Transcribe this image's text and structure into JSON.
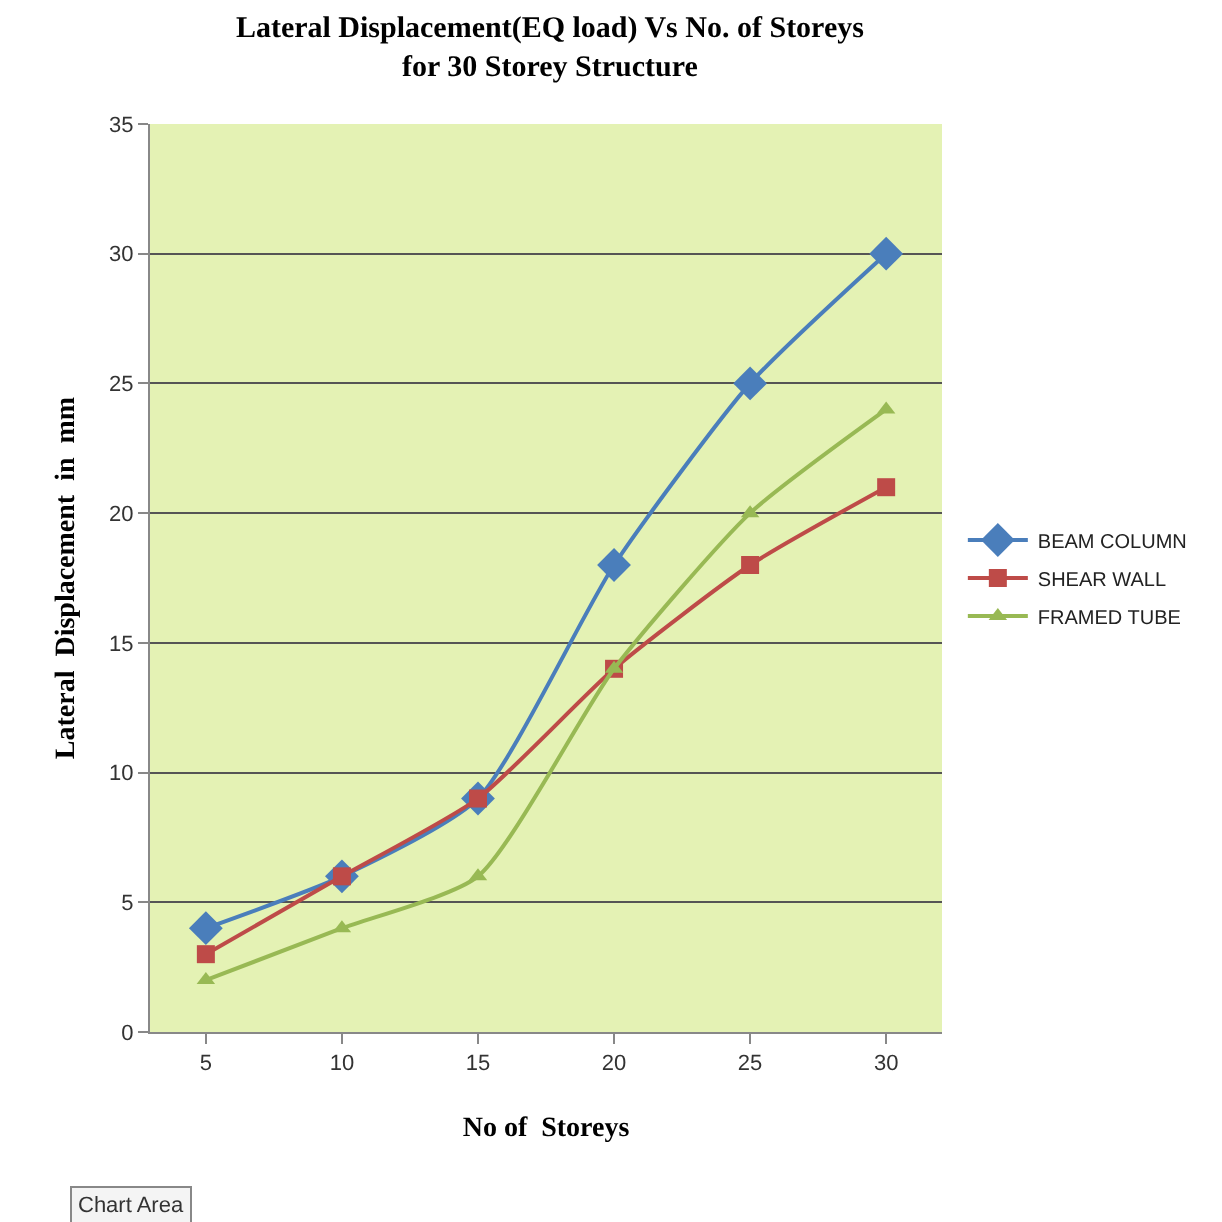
{
  "chart_data": {
    "type": "line",
    "title": "Lateral Displacement(EQ load) Vs No. of Storeys\nfor 30 Storey Structure",
    "xlabel": "No of  Storeys",
    "ylabel": "Lateral  Displacement  in  mm",
    "categories": [
      "5",
      "10",
      "15",
      "20",
      "25",
      "30"
    ],
    "series": [
      {
        "name": "BEAM COLUMN",
        "color": "#4a7ebb",
        "marker": "diamond",
        "values": [
          4,
          6,
          9,
          18,
          25,
          30
        ]
      },
      {
        "name": "SHEAR WALL",
        "color": "#be4b48",
        "marker": "square",
        "values": [
          3,
          6,
          9,
          14,
          18,
          21
        ]
      },
      {
        "name": "FRAMED TUBE",
        "color": "#98b954",
        "marker": "triangle",
        "values": [
          2,
          4,
          6,
          14,
          20,
          24
        ]
      }
    ],
    "ylim": [
      0,
      35
    ],
    "yticks": [
      0,
      5,
      10,
      15,
      20,
      25,
      30,
      35
    ],
    "grid": "y",
    "legend": "right",
    "line_style": "solid",
    "annotations": [
      "Chart Area"
    ]
  }
}
